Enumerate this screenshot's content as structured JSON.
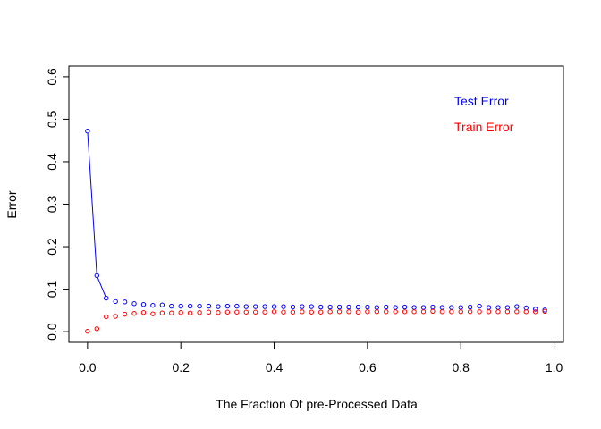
{
  "chart_data": {
    "type": "scatter",
    "title": "",
    "xlabel": "The Fraction Of pre-Processed Data",
    "ylabel": "Error",
    "xlim": [
      -0.04,
      1.02
    ],
    "ylim": [
      -0.025,
      0.625
    ],
    "x_ticks": [
      "0.0",
      "0.2",
      "0.4",
      "0.6",
      "0.8",
      "1.0"
    ],
    "y_ticks": [
      "0.0",
      "0.1",
      "0.2",
      "0.3",
      "0.4",
      "0.5",
      "0.6"
    ],
    "grid": false,
    "legend_position": "top-right",
    "x": [
      0.0,
      0.02,
      0.04,
      0.06,
      0.08,
      0.1,
      0.12,
      0.14,
      0.16,
      0.18,
      0.2,
      0.22,
      0.24,
      0.26,
      0.28,
      0.3,
      0.32,
      0.34,
      0.36,
      0.38,
      0.4,
      0.42,
      0.44,
      0.46,
      0.48,
      0.5,
      0.52,
      0.54,
      0.56,
      0.58,
      0.6,
      0.62,
      0.64,
      0.66,
      0.68,
      0.7,
      0.72,
      0.74,
      0.76,
      0.78,
      0.8,
      0.82,
      0.84,
      0.86,
      0.88,
      0.9,
      0.92,
      0.94,
      0.96,
      0.98
    ],
    "series": [
      {
        "name": "Test Error",
        "color": "#0000ff",
        "connect_first_points": 3,
        "values": [
          0.472,
          0.132,
          0.079,
          0.071,
          0.07,
          0.066,
          0.064,
          0.062,
          0.063,
          0.06,
          0.06,
          0.06,
          0.06,
          0.06,
          0.059,
          0.06,
          0.06,
          0.059,
          0.059,
          0.059,
          0.059,
          0.059,
          0.058,
          0.059,
          0.059,
          0.058,
          0.058,
          0.058,
          0.058,
          0.058,
          0.058,
          0.057,
          0.058,
          0.057,
          0.058,
          0.057,
          0.057,
          0.058,
          0.057,
          0.057,
          0.057,
          0.058,
          0.06,
          0.057,
          0.057,
          0.057,
          0.059,
          0.056,
          0.053,
          0.051
        ]
      },
      {
        "name": "Train Error",
        "color": "#ff0000",
        "connect_first_points": 0,
        "values": [
          0.001,
          0.007,
          0.035,
          0.036,
          0.041,
          0.043,
          0.045,
          0.042,
          0.044,
          0.044,
          0.045,
          0.044,
          0.045,
          0.046,
          0.045,
          0.046,
          0.046,
          0.046,
          0.046,
          0.046,
          0.047,
          0.046,
          0.046,
          0.047,
          0.046,
          0.046,
          0.047,
          0.047,
          0.047,
          0.046,
          0.047,
          0.047,
          0.047,
          0.047,
          0.047,
          0.047,
          0.047,
          0.048,
          0.047,
          0.047,
          0.047,
          0.047,
          0.047,
          0.047,
          0.047,
          0.047,
          0.047,
          0.047,
          0.047,
          0.048
        ]
      }
    ]
  }
}
